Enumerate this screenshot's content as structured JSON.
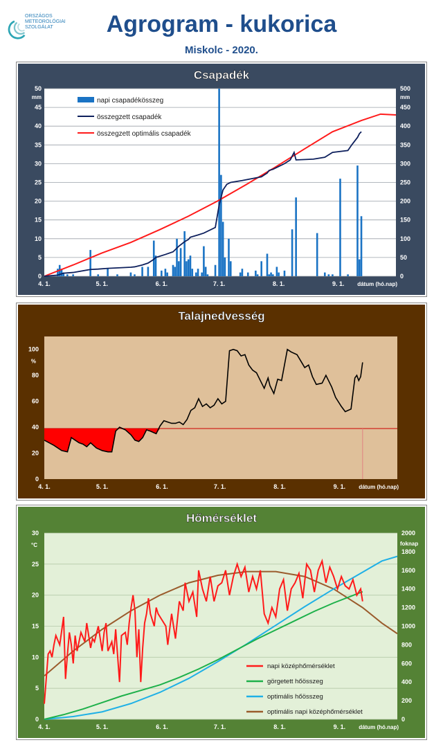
{
  "header": {
    "logo_line1": "ORSZÁGOS",
    "logo_line2": "METEOROLÓGIAI",
    "logo_line3": "SZOLGÁLAT",
    "title": "Agrogram - kukorica",
    "subtitle": "Miskolc - 2020."
  },
  "colors": {
    "panel1_bg": "#3a4a60",
    "panel2_bg": "#5a3000",
    "panel3_bg": "#548235",
    "plot1_bg": "#ffffff",
    "plot2_bg": "#dfc09a",
    "plot3_bg": "#e3f0d8"
  },
  "chart_data": [
    {
      "type": "bar",
      "title": "Csapadék",
      "ylabel_left": "mm",
      "ylabel_right": "mm",
      "xlabel": "dátum (hó.nap)",
      "ylim": [
        0,
        50
      ],
      "ylim_right": [
        0,
        500
      ],
      "yticks": [
        "0",
        "5",
        "10",
        "15",
        "20",
        "25",
        "30",
        "35",
        "40",
        "45",
        "50"
      ],
      "yticks_right": [
        "0",
        "50",
        "100",
        "150",
        "200",
        "250",
        "300",
        "350",
        "400",
        "450",
        "500"
      ],
      "xticks": [
        "4. 1.",
        "5. 1.",
        "6. 1.",
        "7. 1.",
        "8. 1.",
        "9. 1."
      ],
      "x_range_days": [
        0,
        183
      ],
      "grid": true,
      "legend_position": "top-left",
      "series": [
        {
          "name": "napi csapadékösszeg",
          "color": "#1a73c4",
          "kind": "bar",
          "axis": "left",
          "x": [
            7,
            8,
            9,
            10,
            12,
            15,
            24,
            28,
            33,
            38,
            45,
            47,
            51,
            54,
            57,
            58,
            61,
            63,
            64,
            67,
            68,
            69,
            70,
            71,
            73,
            74,
            75,
            76,
            77,
            79,
            80,
            82,
            83,
            84,
            85,
            89,
            91,
            92,
            93,
            94,
            96,
            97,
            102,
            103,
            106,
            110,
            111,
            113,
            116,
            117,
            118,
            119,
            121,
            122,
            125,
            129,
            131,
            142,
            146,
            148,
            150,
            154
          ],
          "y": [
            2,
            3,
            2,
            1,
            0.5,
            0.5,
            7,
            0.5,
            2,
            0.5,
            1,
            0.5,
            2.5,
            2.5,
            9.5,
            5.5,
            1.5,
            2,
            1,
            3,
            2.5,
            10,
            4,
            7.5,
            12,
            4,
            4.5,
            5.5,
            2,
            1,
            2,
            1,
            8,
            2.5,
            0.5,
            3,
            50,
            27,
            14.5,
            5,
            10,
            4,
            1,
            2,
            1,
            1.5,
            0.5,
            4,
            6,
            0.5,
            1,
            0.5,
            2.5,
            1,
            1.5,
            12.5,
            21,
            11.5,
            1,
            0.5,
            0.5,
            26
          ],
          "extra_x": [
            158,
            163,
            164,
            165
          ],
          "extra_y": [
            0.5,
            29.5,
            4.5,
            16
          ]
        },
        {
          "name": "összegzett csapadék",
          "color": "#0d1f5c",
          "kind": "line",
          "axis": "right",
          "x": [
            0,
            7,
            10,
            15,
            24,
            28,
            33,
            45,
            47,
            51,
            54,
            57,
            58,
            63,
            67,
            69,
            70,
            73,
            75,
            76,
            80,
            83,
            89,
            91,
            92,
            93,
            95,
            97,
            103,
            110,
            113,
            116,
            117,
            119,
            121,
            125,
            128,
            129,
            130,
            131,
            140,
            146,
            150,
            158,
            160,
            163,
            164,
            165
          ],
          "y": [
            0,
            3,
            8,
            10,
            18,
            19,
            21,
            24,
            25,
            30,
            35,
            45,
            50,
            58,
            65,
            75,
            80,
            92,
            98,
            104,
            110,
            115,
            130,
            190,
            210,
            230,
            245,
            250,
            255,
            262,
            265,
            275,
            282,
            285,
            290,
            300,
            310,
            320,
            330,
            310,
            312,
            317,
            330,
            335,
            350,
            370,
            380,
            385
          ]
        },
        {
          "name": "összegzett optimális csapadék",
          "color": "#ff1a1a",
          "kind": "line",
          "axis": "right",
          "x": [
            0,
            15,
            30,
            45,
            60,
            75,
            90,
            105,
            120,
            135,
            150,
            165,
            175,
            183
          ],
          "y": [
            0,
            30,
            62,
            90,
            124,
            160,
            200,
            244,
            290,
            338,
            385,
            415,
            432,
            430
          ]
        }
      ]
    },
    {
      "type": "line",
      "title": "Talajnedvesség",
      "ylabel": "%",
      "xlabel": "dátum (hó.nap)",
      "ylim": [
        0,
        110
      ],
      "yticks": [
        "0",
        "20",
        "40",
        "60",
        "80",
        "100"
      ],
      "xticks": [
        "4. 1.",
        "5. 1.",
        "6. 1.",
        "7. 1.",
        "8. 1.",
        "9. 1."
      ],
      "x_range_days": [
        0,
        183
      ],
      "threshold": 39,
      "grid": false,
      "series": [
        {
          "name": "talajnedvesség",
          "color": "#000000",
          "x": [
            0,
            5,
            9,
            12,
            14,
            16,
            18,
            20,
            22,
            24,
            27,
            30,
            33,
            35,
            37,
            39,
            42,
            45,
            47,
            49,
            51,
            53,
            55,
            58,
            60,
            62,
            64,
            66,
            68,
            70,
            72,
            74,
            76,
            78,
            80,
            82,
            84,
            86,
            88,
            90,
            92,
            94,
            96,
            98,
            100,
            102,
            104,
            106,
            108,
            110,
            112,
            114,
            116,
            117,
            119,
            121,
            123,
            126,
            128,
            131,
            133,
            135,
            137,
            139,
            141,
            144,
            146,
            149,
            151,
            154,
            156,
            159,
            161,
            162,
            163,
            164,
            165
          ],
          "y": [
            30,
            26,
            22,
            21,
            32,
            30,
            28,
            27,
            25,
            28,
            24,
            22,
            21,
            21,
            37,
            40,
            38,
            34,
            30,
            29,
            32,
            38,
            37,
            35,
            41,
            45,
            44,
            43,
            43,
            44,
            42,
            46,
            53,
            55,
            62,
            56,
            58,
            55,
            57,
            62,
            58,
            60,
            99,
            100,
            99,
            95,
            96,
            88,
            84,
            82,
            76,
            70,
            78,
            72,
            66,
            77,
            76,
            100,
            98,
            96,
            91,
            86,
            88,
            79,
            73,
            74,
            80,
            71,
            63,
            56,
            52,
            54,
            78,
            80,
            76,
            79,
            90
          ]
        }
      ]
    },
    {
      "type": "line",
      "title": "Hőmérséklet",
      "ylabel_left": "°C",
      "ylabel_right": "foknap",
      "xlabel": "dátum (hó.nap)",
      "ylim": [
        0,
        30
      ],
      "ylim_right": [
        0,
        2000
      ],
      "yticks": [
        "0",
        "5",
        "10",
        "15",
        "20",
        "25",
        "30"
      ],
      "yticks_right": [
        "0",
        "200",
        "400",
        "600",
        "800",
        "1000",
        "1200",
        "1400",
        "1600",
        "1800",
        "2000"
      ],
      "xticks": [
        "4. 1.",
        "5. 1.",
        "6. 1.",
        "7. 1.",
        "8. 1.",
        "9. 1."
      ],
      "x_range_days": [
        0,
        183
      ],
      "grid": true,
      "legend_position": "bottom-right",
      "series": [
        {
          "name": "napi középhőmérséklet",
          "color": "#ff1a1a",
          "axis": "left",
          "x": [
            0,
            2,
            3,
            4,
            5,
            6,
            8,
            10,
            11,
            12,
            13,
            14,
            15,
            16,
            17,
            19,
            21,
            22,
            24,
            25,
            26,
            28,
            30,
            31,
            32,
            33,
            35,
            36,
            37,
            39,
            40,
            42,
            43,
            44,
            45,
            46,
            47,
            48,
            49,
            50,
            51,
            52,
            53,
            54,
            55,
            56,
            57,
            58,
            59,
            61,
            63,
            64,
            66,
            68,
            70,
            72,
            73,
            75,
            77,
            79,
            80,
            82,
            84,
            86,
            88,
            90,
            92,
            94,
            96,
            98,
            100,
            102,
            104,
            106,
            108,
            110,
            112,
            114,
            116,
            118,
            120,
            122,
            124,
            126,
            128,
            130,
            132,
            134,
            136,
            138,
            140,
            142,
            144,
            146,
            148,
            150,
            152,
            154,
            156,
            158,
            160,
            162,
            164,
            165
          ],
          "y": [
            2.5,
            10.5,
            11,
            10,
            12,
            13.5,
            12,
            16.5,
            6.5,
            10.5,
            14,
            12,
            9,
            13.5,
            11,
            14,
            12.5,
            15.5,
            11.5,
            13,
            12.5,
            15,
            11,
            14,
            15.5,
            11,
            12.5,
            10.5,
            14.5,
            6,
            13.5,
            14,
            12,
            15.5,
            18,
            20,
            17.5,
            10,
            14.5,
            6,
            11.5,
            15.5,
            17,
            19.5,
            17,
            16,
            15,
            18,
            17,
            16,
            15,
            12,
            17,
            13,
            19,
            17.5,
            22,
            19,
            20.5,
            16.5,
            24,
            21,
            19,
            23,
            19,
            21.5,
            22,
            24,
            20,
            23,
            25,
            23,
            24.5,
            20.5,
            23,
            21,
            24,
            17,
            15.5,
            18,
            16.5,
            21,
            22.5,
            17.5,
            21,
            22,
            23.5,
            19.5,
            25,
            24,
            20.5,
            24,
            25.5,
            22,
            24.5,
            23,
            21,
            23,
            21.5,
            21,
            22.5,
            20,
            21,
            19
          ]
        },
        {
          "name": "görgetett hőösszeg",
          "color": "#1db04a",
          "axis": "right",
          "x": [
            0,
            10,
            20,
            30,
            40,
            50,
            60,
            70,
            80,
            90,
            100,
            110,
            120,
            130,
            140,
            150,
            160,
            165
          ],
          "y": [
            0,
            50,
            110,
            180,
            250,
            310,
            370,
            450,
            540,
            640,
            750,
            860,
            960,
            1060,
            1160,
            1250,
            1330,
            1370
          ]
        },
        {
          "name": "optimális hőösszeg",
          "color": "#1fb0e6",
          "axis": "right",
          "x": [
            0,
            15,
            30,
            45,
            60,
            75,
            90,
            105,
            120,
            135,
            150,
            165,
            175,
            183
          ],
          "y": [
            0,
            30,
            80,
            170,
            290,
            440,
            620,
            810,
            1010,
            1210,
            1400,
            1580,
            1700,
            1750
          ]
        },
        {
          "name": "optimális napi középhőmérséklet",
          "color": "#9a5b2c",
          "axis": "left",
          "x": [
            0,
            15,
            30,
            45,
            60,
            75,
            90,
            105,
            120,
            135,
            150,
            165,
            175,
            183
          ],
          "y": [
            7,
            11,
            14.5,
            17.5,
            20,
            22,
            23.2,
            23.8,
            23.8,
            23,
            21,
            18,
            15.5,
            13.8
          ]
        }
      ]
    }
  ],
  "axis_title": "dátum (hó.nap)"
}
